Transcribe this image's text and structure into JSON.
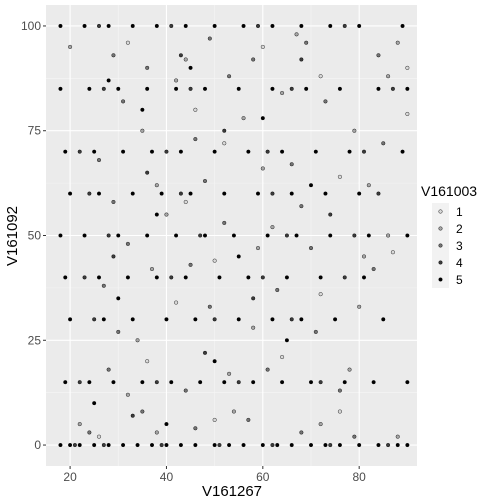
{
  "chart_data": {
    "type": "scatter",
    "xlabel": "V161267",
    "ylabel": "V161092",
    "xlim": [
      15,
      92
    ],
    "ylim": [
      -5,
      105
    ],
    "x_ticks": [
      20,
      40,
      60,
      80
    ],
    "y_ticks": [
      0,
      25,
      50,
      75,
      100
    ],
    "grid": true,
    "legend": {
      "title": "V161003",
      "position": "right",
      "items": [
        {
          "label": "1",
          "color": "#d9d9d9"
        },
        {
          "label": "2",
          "color": "#a6a6a6"
        },
        {
          "label": "3",
          "color": "#737373"
        },
        {
          "label": "4",
          "color": "#3b3b3b"
        },
        {
          "label": "5",
          "color": "#000000"
        }
      ]
    },
    "x_range_observed": [
      18,
      90
    ],
    "y_levels_dense": [
      0,
      15,
      30,
      40,
      50,
      60,
      70,
      85,
      100
    ],
    "series": [
      {
        "group": "5",
        "points": [
          [
            18,
            0
          ],
          [
            20,
            0
          ],
          [
            22,
            0
          ],
          [
            25,
            0
          ],
          [
            28,
            0
          ],
          [
            31,
            0
          ],
          [
            34,
            0
          ],
          [
            37,
            0
          ],
          [
            40,
            0
          ],
          [
            43,
            0
          ],
          [
            46,
            0
          ],
          [
            50,
            0
          ],
          [
            53,
            0
          ],
          [
            56,
            0
          ],
          [
            60,
            0
          ],
          [
            63,
            0
          ],
          [
            66,
            0
          ],
          [
            70,
            0
          ],
          [
            73,
            0
          ],
          [
            76,
            0
          ],
          [
            80,
            0
          ],
          [
            84,
            0
          ],
          [
            88,
            0
          ],
          [
            90,
            0
          ],
          [
            19,
            15
          ],
          [
            24,
            15
          ],
          [
            29,
            15
          ],
          [
            35,
            15
          ],
          [
            41,
            15
          ],
          [
            47,
            15
          ],
          [
            52,
            15
          ],
          [
            58,
            15
          ],
          [
            64,
            15
          ],
          [
            70,
            15
          ],
          [
            77,
            15
          ],
          [
            83,
            15
          ],
          [
            90,
            15
          ],
          [
            20,
            30
          ],
          [
            27,
            30
          ],
          [
            33,
            30
          ],
          [
            40,
            30
          ],
          [
            46,
            30
          ],
          [
            55,
            30
          ],
          [
            62,
            30
          ],
          [
            68,
            30
          ],
          [
            75,
            30
          ],
          [
            85,
            30
          ],
          [
            19,
            40
          ],
          [
            26,
            40
          ],
          [
            32,
            40
          ],
          [
            38,
            40
          ],
          [
            44,
            40
          ],
          [
            51,
            40
          ],
          [
            57,
            40
          ],
          [
            65,
            40
          ],
          [
            72,
            40
          ],
          [
            81,
            40
          ],
          [
            18,
            50
          ],
          [
            23,
            50
          ],
          [
            30,
            50
          ],
          [
            36,
            50
          ],
          [
            42,
            50
          ],
          [
            48,
            50
          ],
          [
            54,
            50
          ],
          [
            61,
            50
          ],
          [
            67,
            50
          ],
          [
            74,
            50
          ],
          [
            82,
            50
          ],
          [
            90,
            50
          ],
          [
            20,
            60
          ],
          [
            26,
            60
          ],
          [
            33,
            60
          ],
          [
            39,
            60
          ],
          [
            45,
            60
          ],
          [
            52,
            60
          ],
          [
            59,
            60
          ],
          [
            66,
            60
          ],
          [
            73,
            60
          ],
          [
            80,
            60
          ],
          [
            19,
            70
          ],
          [
            25,
            70
          ],
          [
            31,
            70
          ],
          [
            37,
            70
          ],
          [
            43,
            70
          ],
          [
            50,
            70
          ],
          [
            57,
            70
          ],
          [
            64,
            70
          ],
          [
            71,
            70
          ],
          [
            78,
            70
          ],
          [
            89,
            70
          ],
          [
            18,
            85
          ],
          [
            24,
            85
          ],
          [
            30,
            85
          ],
          [
            36,
            85
          ],
          [
            42,
            85
          ],
          [
            48,
            85
          ],
          [
            55,
            85
          ],
          [
            62,
            85
          ],
          [
            69,
            85
          ],
          [
            76,
            85
          ],
          [
            84,
            85
          ],
          [
            90,
            85
          ],
          [
            18,
            100
          ],
          [
            23,
            100
          ],
          [
            28,
            100
          ],
          [
            33,
            100
          ],
          [
            38,
            100
          ],
          [
            44,
            100
          ],
          [
            50,
            100
          ],
          [
            56,
            100
          ],
          [
            62,
            100
          ],
          [
            68,
            100
          ],
          [
            74,
            100
          ],
          [
            80,
            100
          ],
          [
            89,
            100
          ],
          [
            28,
            87
          ],
          [
            35,
            80
          ],
          [
            45,
            90
          ],
          [
            60,
            78
          ],
          [
            30,
            35
          ],
          [
            50,
            20
          ],
          [
            25,
            10
          ],
          [
            40,
            5
          ],
          [
            65,
            25
          ],
          [
            38,
            55
          ],
          [
            55,
            45
          ],
          [
            70,
            62
          ]
        ]
      },
      {
        "group": "4",
        "points": [
          [
            21,
            0
          ],
          [
            27,
            0
          ],
          [
            39,
            0
          ],
          [
            51,
            0
          ],
          [
            62,
            0
          ],
          [
            74,
            0
          ],
          [
            86,
            0
          ],
          [
            22,
            15
          ],
          [
            38,
            15
          ],
          [
            55,
            15
          ],
          [
            72,
            15
          ],
          [
            25,
            30
          ],
          [
            50,
            30
          ],
          [
            66,
            30
          ],
          [
            23,
            40
          ],
          [
            41,
            40
          ],
          [
            60,
            40
          ],
          [
            77,
            40
          ],
          [
            28,
            50
          ],
          [
            47,
            50
          ],
          [
            65,
            50
          ],
          [
            79,
            50
          ],
          [
            24,
            60
          ],
          [
            43,
            60
          ],
          [
            62,
            60
          ],
          [
            84,
            60
          ],
          [
            22,
            70
          ],
          [
            40,
            70
          ],
          [
            61,
            70
          ],
          [
            81,
            70
          ],
          [
            27,
            85
          ],
          [
            45,
            85
          ],
          [
            66,
            85
          ],
          [
            87,
            85
          ],
          [
            26,
            100
          ],
          [
            41,
            100
          ],
          [
            59,
            100
          ],
          [
            77,
            100
          ],
          [
            33,
            7
          ],
          [
            48,
            22
          ],
          [
            58,
            35
          ],
          [
            36,
            65
          ],
          [
            52,
            75
          ],
          [
            68,
            92
          ],
          [
            29,
            45
          ],
          [
            74,
            55
          ],
          [
            43,
            93
          ]
        ]
      },
      {
        "group": "3",
        "points": [
          [
            24,
            3
          ],
          [
            35,
            8
          ],
          [
            46,
            4
          ],
          [
            57,
            6
          ],
          [
            68,
            3
          ],
          [
            79,
            2
          ],
          [
            28,
            18
          ],
          [
            44,
            13
          ],
          [
            61,
            18
          ],
          [
            76,
            13
          ],
          [
            30,
            27
          ],
          [
            49,
            33
          ],
          [
            71,
            27
          ],
          [
            27,
            38
          ],
          [
            45,
            43
          ],
          [
            63,
            37
          ],
          [
            83,
            42
          ],
          [
            32,
            48
          ],
          [
            52,
            53
          ],
          [
            70,
            47
          ],
          [
            29,
            58
          ],
          [
            48,
            63
          ],
          [
            68,
            57
          ],
          [
            26,
            68
          ],
          [
            46,
            73
          ],
          [
            66,
            67
          ],
          [
            85,
            72
          ],
          [
            31,
            82
          ],
          [
            53,
            88
          ],
          [
            73,
            82
          ],
          [
            29,
            93
          ],
          [
            49,
            97
          ],
          [
            69,
            96
          ],
          [
            36,
            90
          ],
          [
            58,
            92
          ],
          [
            84,
            93
          ]
        ]
      },
      {
        "group": "2",
        "points": [
          [
            22,
            5
          ],
          [
            38,
            3
          ],
          [
            54,
            8
          ],
          [
            72,
            5
          ],
          [
            88,
            2
          ],
          [
            32,
            12
          ],
          [
            53,
            17
          ],
          [
            78,
            18
          ],
          [
            34,
            25
          ],
          [
            58,
            28
          ],
          [
            80,
            33
          ],
          [
            37,
            42
          ],
          [
            59,
            47
          ],
          [
            81,
            45
          ],
          [
            40,
            55
          ],
          [
            62,
            52
          ],
          [
            86,
            50
          ],
          [
            38,
            62
          ],
          [
            60,
            66
          ],
          [
            82,
            62
          ],
          [
            35,
            75
          ],
          [
            56,
            78
          ],
          [
            79,
            75
          ],
          [
            42,
            87
          ],
          [
            64,
            84
          ],
          [
            86,
            88
          ],
          [
            20,
            95
          ],
          [
            44,
            92
          ],
          [
            67,
            98
          ],
          [
            88,
            96
          ]
        ]
      },
      {
        "group": "1",
        "points": [
          [
            26,
            2
          ],
          [
            50,
            6
          ],
          [
            76,
            8
          ],
          [
            36,
            20
          ],
          [
            64,
            21
          ],
          [
            42,
            34
          ],
          [
            72,
            36
          ],
          [
            50,
            44
          ],
          [
            87,
            46
          ],
          [
            44,
            58
          ],
          [
            76,
            64
          ],
          [
            52,
            72
          ],
          [
            90,
            79
          ],
          [
            46,
            80
          ],
          [
            72,
            88
          ],
          [
            32,
            96
          ],
          [
            60,
            95
          ],
          [
            90,
            90
          ]
        ]
      }
    ]
  }
}
